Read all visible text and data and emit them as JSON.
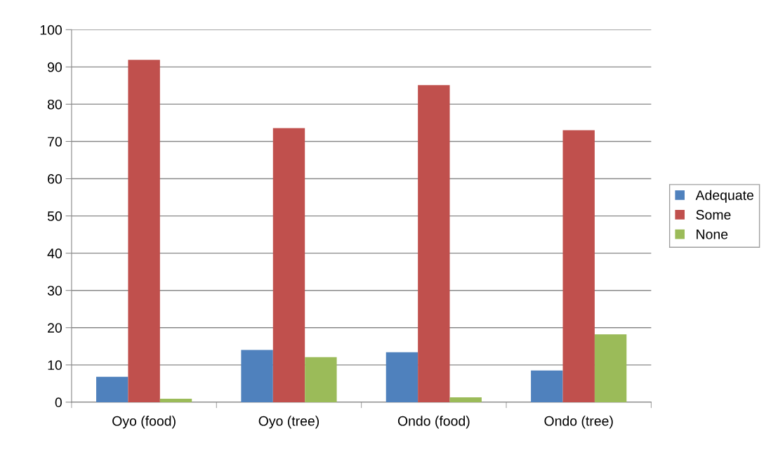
{
  "chart_data": {
    "type": "bar",
    "categories": [
      "Oyo (food)",
      "Oyo (tree)",
      "Ondo (food)",
      "Ondo (tree)"
    ],
    "series": [
      {
        "name": "Adequate",
        "color": "#4f81bd",
        "values": [
          6.8,
          14.0,
          13.4,
          8.5
        ]
      },
      {
        "name": "Some",
        "color": "#c0504d",
        "values": [
          91.9,
          73.6,
          85.1,
          73.0
        ]
      },
      {
        "name": "None",
        "color": "#9bbb59",
        "values": [
          0.9,
          12.1,
          1.3,
          18.2
        ]
      }
    ],
    "ylim": [
      0,
      100
    ],
    "yticks": [
      0,
      10,
      20,
      30,
      40,
      50,
      60,
      70,
      80,
      90,
      100
    ],
    "grid": "y",
    "legend": "right"
  }
}
